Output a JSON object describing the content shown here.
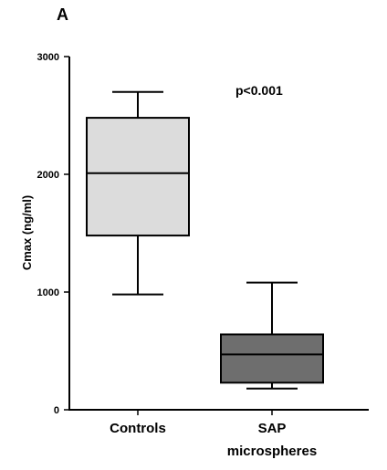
{
  "panel_label": "A",
  "annotation": "p<0.001",
  "chart_data": {
    "type": "box",
    "title": "",
    "xlabel": "",
    "ylabel": "Cmax (ng/ml)",
    "ylim": [
      0,
      3000
    ],
    "yticks": [
      0,
      1000,
      2000,
      3000
    ],
    "grid": false,
    "categories": [
      {
        "lines": [
          "Controls"
        ]
      },
      {
        "lines": [
          "SAP",
          "microspheres"
        ]
      }
    ],
    "boxes": [
      {
        "category": "Controls",
        "min": 980,
        "q1": 1480,
        "median": 2010,
        "q3": 2480,
        "max": 2700,
        "color": "#dcdcdc"
      },
      {
        "category": "SAP microspheres",
        "min": 180,
        "q1": 230,
        "median": 470,
        "q3": 640,
        "max": 1080,
        "color": "#6e6e6e"
      }
    ]
  }
}
